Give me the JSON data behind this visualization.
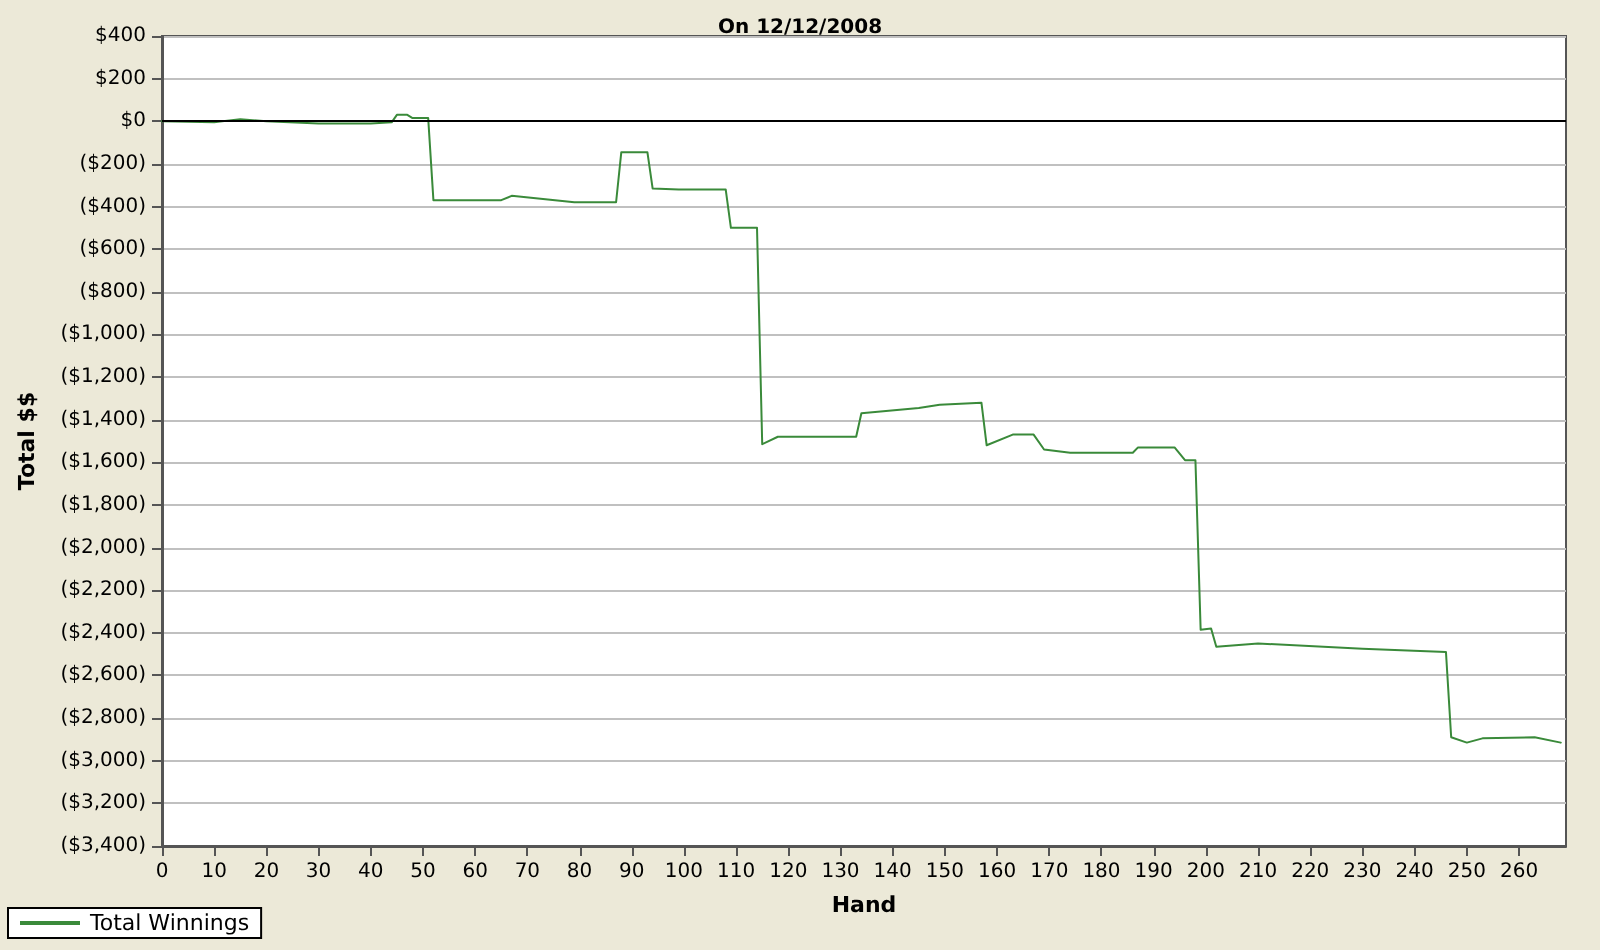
{
  "chart_data": {
    "type": "line",
    "title": "On 12/12/2008",
    "xlabel": "Hand",
    "ylabel": "Total $$",
    "xlim": [
      0,
      269
    ],
    "xticks": [
      0,
      10,
      20,
      30,
      40,
      50,
      60,
      70,
      80,
      90,
      100,
      110,
      120,
      130,
      140,
      150,
      160,
      170,
      180,
      190,
      200,
      210,
      220,
      230,
      240,
      250,
      260
    ],
    "ylim": [
      -3400,
      400
    ],
    "yticks": [
      {
        "value": 400,
        "label": "$400"
      },
      {
        "value": 200,
        "label": "$200"
      },
      {
        "value": 0,
        "label": "$0"
      },
      {
        "value": -200,
        "label": "($200)"
      },
      {
        "value": -400,
        "label": "($400)"
      },
      {
        "value": -600,
        "label": "($600)"
      },
      {
        "value": -800,
        "label": "($800)"
      },
      {
        "value": -1000,
        "label": "($1,000)"
      },
      {
        "value": -1200,
        "label": "($1,200)"
      },
      {
        "value": -1400,
        "label": "($1,400)"
      },
      {
        "value": -1600,
        "label": "($1,600)"
      },
      {
        "value": -1800,
        "label": "($1,800)"
      },
      {
        "value": -2000,
        "label": "($2,000)"
      },
      {
        "value": -2200,
        "label": "($2,200)"
      },
      {
        "value": -2400,
        "label": "($2,400)"
      },
      {
        "value": -2600,
        "label": "($2,600)"
      },
      {
        "value": -2800,
        "label": "($2,800)"
      },
      {
        "value": -3000,
        "label": "($3,000)"
      },
      {
        "value": -3200,
        "label": "($3,200)"
      },
      {
        "value": -3400,
        "label": "($3,400)"
      }
    ],
    "grid": "y",
    "legend": "bottom left",
    "marker": "none",
    "line_style": "solid",
    "ref_lines": [
      {
        "axis": "y",
        "value": 0,
        "color": "#000000"
      }
    ],
    "series": [
      {
        "name": "Total Winnings",
        "color": "#3a8a3a",
        "x": [
          0,
          10,
          15,
          20,
          30,
          40,
          44,
          45,
          47,
          48,
          51,
          52,
          65,
          67,
          73,
          79,
          87,
          88,
          93,
          94,
          99,
          108,
          109,
          114,
          115,
          118,
          133,
          134,
          145,
          149,
          157,
          158,
          163,
          167,
          169,
          174,
          186,
          187,
          194,
          196,
          198,
          199,
          201,
          202,
          210,
          230,
          246,
          247,
          250,
          253,
          263,
          268
        ],
        "values": [
          0,
          -5,
          10,
          0,
          -10,
          -10,
          -5,
          30,
          30,
          15,
          15,
          -370,
          -370,
          -350,
          -365,
          -380,
          -380,
          -145,
          -145,
          -315,
          -320,
          -320,
          -500,
          -500,
          -1515,
          -1480,
          -1480,
          -1370,
          -1345,
          -1330,
          -1320,
          -1520,
          -1470,
          -1470,
          -1540,
          -1555,
          -1555,
          -1530,
          -1530,
          -1590,
          -1590,
          -2385,
          -2380,
          -2465,
          -2450,
          -2475,
          -2490,
          -2890,
          -2915,
          -2895,
          -2890,
          -2915
        ]
      }
    ]
  }
}
